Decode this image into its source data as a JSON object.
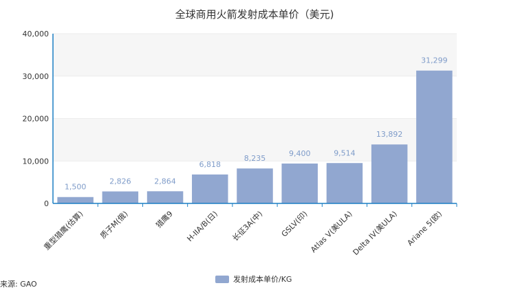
{
  "chart_data": {
    "type": "bar",
    "title": "全球商用火箭发射成本单价（美元)",
    "categories": [
      "重型猎鹰(估算)",
      "质子M(俄)",
      "猎鹰9",
      "H-IIA/B(日)",
      "长征3A(中)",
      "GSLV(印)",
      "Atlas V(美ULA)",
      "Delta IV(美ULA)",
      "Ariane 5(欧)"
    ],
    "series": [
      {
        "name": "发射成本单价/KG",
        "values": [
          1500,
          2826,
          2864,
          6818,
          8235,
          9400,
          9514,
          13892,
          31299
        ],
        "value_labels": [
          "1,500",
          "2,826",
          "2,864",
          "6,818",
          "8,235",
          "9,400",
          "9,514",
          "13,892",
          "31,299"
        ]
      }
    ],
    "ylim": [
      0,
      40000
    ],
    "yticks": [
      0,
      10000,
      20000,
      30000,
      40000
    ],
    "ytick_labels": [
      "0",
      "10,000",
      "20,000",
      "30,000",
      "40,000"
    ],
    "xlabel": "",
    "ylabel": "",
    "legend_position": "bottom-center",
    "grid": true
  },
  "source_text": "来源: GAO",
  "colors": {
    "bar": "#91a7d0",
    "axis": "#1b7fc4",
    "grid": "#ececec",
    "band": "#f6f6f6",
    "label": "#7f9cc9"
  }
}
